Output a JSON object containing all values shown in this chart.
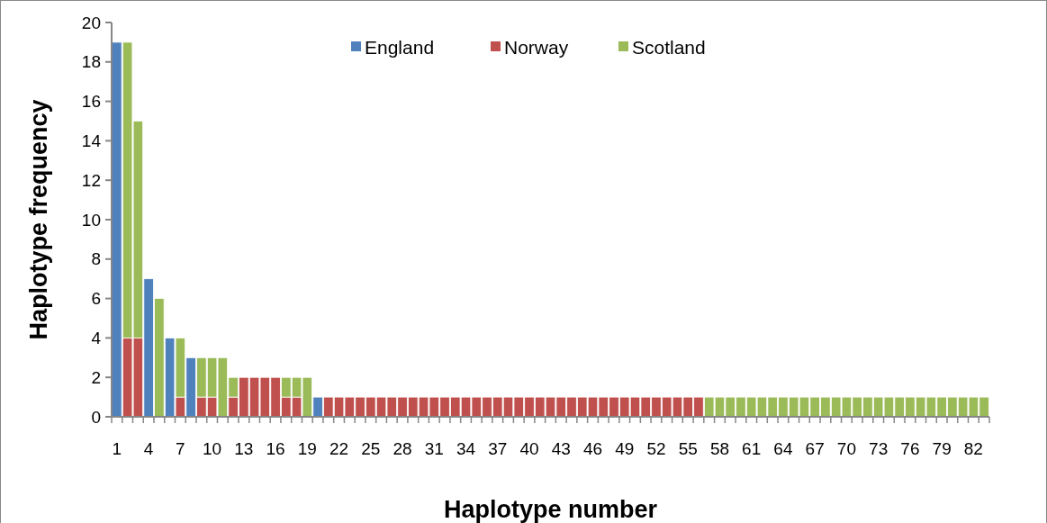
{
  "chart_data": {
    "type": "bar",
    "stacked": true,
    "xlabel": "Haplotype number",
    "ylabel": "Haplotype frequency",
    "categories": [
      "1",
      null,
      null,
      "4",
      null,
      null,
      "7",
      null,
      null,
      "10",
      null,
      null,
      "13",
      null,
      null,
      "16",
      null,
      null,
      "19",
      null,
      null,
      "22",
      null,
      null,
      "25",
      null,
      null,
      "28",
      null,
      null,
      "31",
      null,
      null,
      "34",
      null,
      null,
      "37",
      null,
      null,
      "40",
      null,
      null,
      "43",
      null,
      null,
      "46",
      null,
      null,
      "49",
      null,
      null,
      "52",
      null,
      null,
      "55",
      null,
      null,
      "58",
      null,
      null,
      "61",
      null,
      null,
      "64",
      null,
      null,
      "67",
      null,
      null,
      "70",
      null,
      null,
      "73",
      null,
      null,
      "76",
      null,
      null,
      "79",
      null,
      null,
      "82",
      null
    ],
    "series": [
      {
        "name": "England",
        "color": "#4f81bd",
        "values": [
          19,
          0,
          0,
          7,
          0,
          4,
          0,
          3,
          0,
          0,
          0,
          0,
          0,
          0,
          0,
          0,
          0,
          0,
          0,
          1,
          0,
          0,
          0,
          0,
          0,
          0,
          0,
          0,
          0,
          0,
          0,
          0,
          0,
          0,
          0,
          0,
          0,
          0,
          0,
          0,
          0,
          0,
          0,
          0,
          0,
          0,
          0,
          0,
          0,
          0,
          0,
          0,
          0,
          0,
          0,
          0,
          0,
          0,
          0,
          0,
          0,
          0,
          0,
          0,
          0,
          0,
          0,
          0,
          0,
          0,
          0,
          0,
          0,
          0,
          0,
          0,
          0,
          0,
          0,
          0,
          0,
          0,
          0
        ]
      },
      {
        "name": "Norway",
        "color": "#c0504d",
        "values": [
          0,
          4,
          4,
          0,
          0,
          0,
          1,
          0,
          1,
          1,
          0,
          1,
          2,
          2,
          2,
          2,
          1,
          1,
          0,
          0,
          1,
          1,
          1,
          1,
          1,
          1,
          1,
          1,
          1,
          1,
          1,
          1,
          1,
          1,
          1,
          1,
          1,
          1,
          1,
          1,
          1,
          1,
          1,
          1,
          1,
          1,
          1,
          1,
          1,
          1,
          1,
          1,
          1,
          1,
          1,
          1,
          0,
          0,
          0,
          0,
          0,
          0,
          0,
          0,
          0,
          0,
          0,
          0,
          0,
          0,
          0,
          0,
          0,
          0,
          0,
          0,
          0,
          0,
          0,
          0,
          0,
          0,
          0
        ]
      },
      {
        "name": "Scotland",
        "color": "#9bbb59",
        "values": [
          0,
          15,
          11,
          0,
          6,
          0,
          3,
          0,
          2,
          2,
          3,
          1,
          0,
          0,
          0,
          0,
          1,
          1,
          2,
          0,
          0,
          0,
          0,
          0,
          0,
          0,
          0,
          0,
          0,
          0,
          0,
          0,
          0,
          0,
          0,
          0,
          0,
          0,
          0,
          0,
          0,
          0,
          0,
          0,
          0,
          0,
          0,
          0,
          0,
          0,
          0,
          0,
          0,
          0,
          0,
          0,
          1,
          1,
          1,
          1,
          1,
          1,
          1,
          1,
          1,
          1,
          1,
          1,
          1,
          1,
          1,
          1,
          1,
          1,
          1,
          1,
          1,
          1,
          1,
          1,
          1,
          1,
          1
        ]
      }
    ],
    "ylim": [
      0,
      20
    ],
    "yticks": [
      0,
      2,
      4,
      6,
      8,
      10,
      12,
      14,
      16,
      18,
      20
    ],
    "grid": false,
    "legend": "top"
  }
}
